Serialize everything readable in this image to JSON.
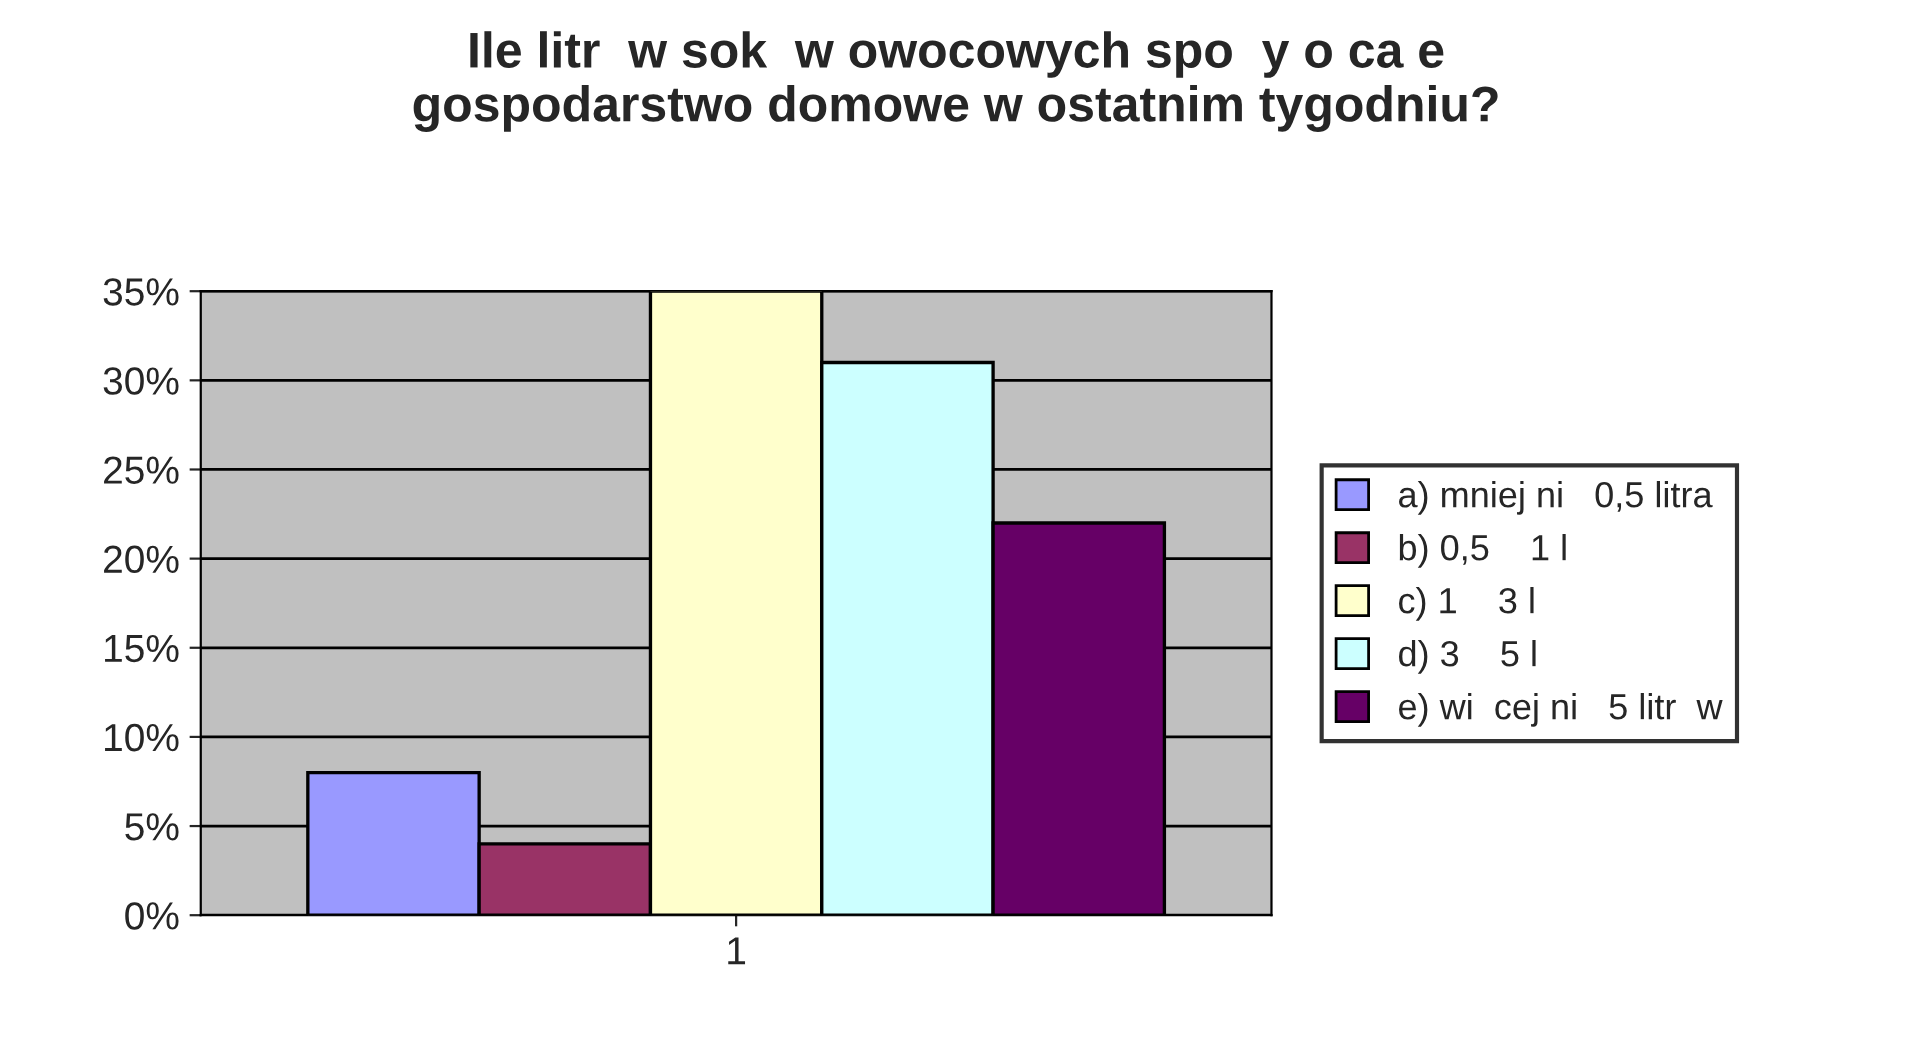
{
  "chart_data": {
    "type": "bar",
    "title": "Ile litr  w sok  w owocowych spo  y o ca e\ngospodarstwo domowe w ostatnim tygodniu?",
    "categories": [
      "1"
    ],
    "series": [
      {
        "name": "a) mniej ni   0,5 litra",
        "color": "#9999ff",
        "values": [
          8
        ]
      },
      {
        "name": "b) 0,5    1 l",
        "color": "#993366",
        "values": [
          4
        ]
      },
      {
        "name": "c) 1    3 l",
        "color": "#ffffcc",
        "values": [
          35
        ]
      },
      {
        "name": "d) 3    5 l",
        "color": "#ccffff",
        "values": [
          31
        ]
      },
      {
        "name": "e) wi  cej ni   5 litr  w",
        "color": "#660066",
        "values": [
          22
        ]
      }
    ],
    "ylim": [
      0,
      35
    ],
    "yticks": [
      {
        "value": 0,
        "label": "0%"
      },
      {
        "value": 5,
        "label": "5%"
      },
      {
        "value": 10,
        "label": "10%"
      },
      {
        "value": 15,
        "label": "15%"
      },
      {
        "value": 20,
        "label": "20%"
      },
      {
        "value": 25,
        "label": "25%"
      },
      {
        "value": 30,
        "label": "30%"
      },
      {
        "value": 35,
        "label": "35%"
      }
    ],
    "grid": "y",
    "legend": "right"
  }
}
